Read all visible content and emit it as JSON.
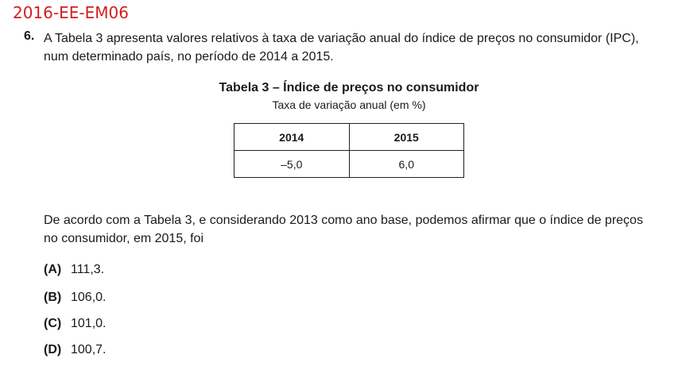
{
  "header": {
    "doc_code": "2016-EE-EM06"
  },
  "question": {
    "number": "6.",
    "stem_lines": [
      "A Tabela 3 apresenta valores relativos à taxa de variação anual do índice de preços no consumidor (IPC),",
      "num determinado país, no período de 2014 a 2015."
    ],
    "table": {
      "title": "Tabela 3 – Índice de preços no consumidor",
      "subtitle": "Taxa de variação anual (em %)",
      "headers": [
        "2014",
        "2015"
      ],
      "values": [
        "–5,0",
        "6,0"
      ]
    },
    "prompt_lines": [
      "De acordo com a Tabela 3, e considerando 2013 como ano base, podemos afirmar que o índice de preços",
      "no consumidor, em 2015, foi"
    ],
    "options": [
      {
        "letter": "(A)",
        "text": "111,3."
      },
      {
        "letter": "(B)",
        "text": "106,0."
      },
      {
        "letter": "(C)",
        "text": "101,0."
      },
      {
        "letter": "(D)",
        "text": "100,7."
      }
    ]
  }
}
